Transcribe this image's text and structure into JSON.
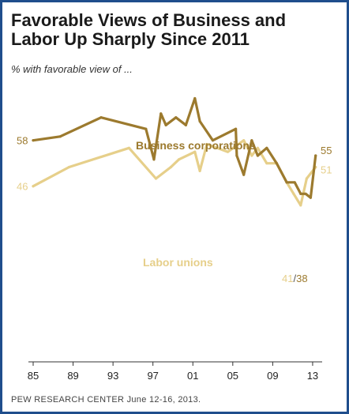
{
  "header": {
    "title_line1": "Favorable Views of Business and",
    "title_line2": "Labor Up Sharply Since 2011",
    "subtitle": "% with favorable view of ..."
  },
  "footer": {
    "source": "PEW RESEARCH CENTER June 12-16, 2013."
  },
  "colors": {
    "business": "#9c7a2e",
    "labor": "#e6cf8a",
    "axis": "#333333",
    "frame": "#1f4e8c"
  },
  "chart_data": {
    "type": "line",
    "title": "Favorable Views of Business and Labor Up Sharply Since 2011",
    "subtitle": "% with favorable view of ...",
    "xlabel": "",
    "ylabel": "",
    "xlim": [
      1985,
      2013.4
    ],
    "ylim": [
      0,
      72
    ],
    "x_ticks": [
      "85",
      "89",
      "93",
      "97",
      "01",
      "05",
      "09",
      "13"
    ],
    "x_tick_values": [
      1985,
      1989,
      1993,
      1997,
      2001,
      2005,
      2009,
      2013
    ],
    "grid": false,
    "series": [
      {
        "name": "Business corporations",
        "color": "#9c7a2e",
        "x": [
          1985,
          1987.7,
          1991.8,
          1996.3,
          1997.1,
          1997.8,
          1998.3,
          1999.3,
          2000.3,
          2001.2,
          2001.7,
          2003,
          2005.3,
          2005.4,
          2006.1,
          2006.9,
          2007.5,
          2008.4,
          2009.4,
          2010.4,
          2011.2,
          2011.8,
          2012.3,
          2012.8,
          2013.3
        ],
        "y": [
          58,
          59,
          64,
          61,
          53,
          65,
          62,
          64,
          62,
          69,
          63,
          58,
          61,
          54,
          49,
          58,
          54,
          56,
          52,
          47,
          47,
          44,
          44,
          43,
          54
        ],
        "start_label": "58",
        "end_label": "55"
      },
      {
        "name": "Labor unions",
        "color": "#e6cf8a",
        "x": [
          1985,
          1988.6,
          1994.6,
          1997.3,
          1998.8,
          1999.6,
          2001.2,
          2001.7,
          2002.4,
          2004.5,
          2006.1,
          2006.9,
          2007.5,
          2008.4,
          2009.4,
          2010.4,
          2011.1,
          2011.8,
          2012.4,
          2013.3
        ],
        "y": [
          46,
          51,
          56,
          48,
          51,
          53,
          55,
          50,
          57,
          55,
          58,
          54,
          56,
          52,
          52,
          47,
          44,
          41,
          48,
          51
        ],
        "start_label": "46",
        "end_label": "51"
      }
    ],
    "annotations": {
      "business_label": "Business corporations",
      "labor_label": "Labor unions",
      "low_labor": "41",
      "low_separator": "/",
      "low_business": "38"
    }
  }
}
